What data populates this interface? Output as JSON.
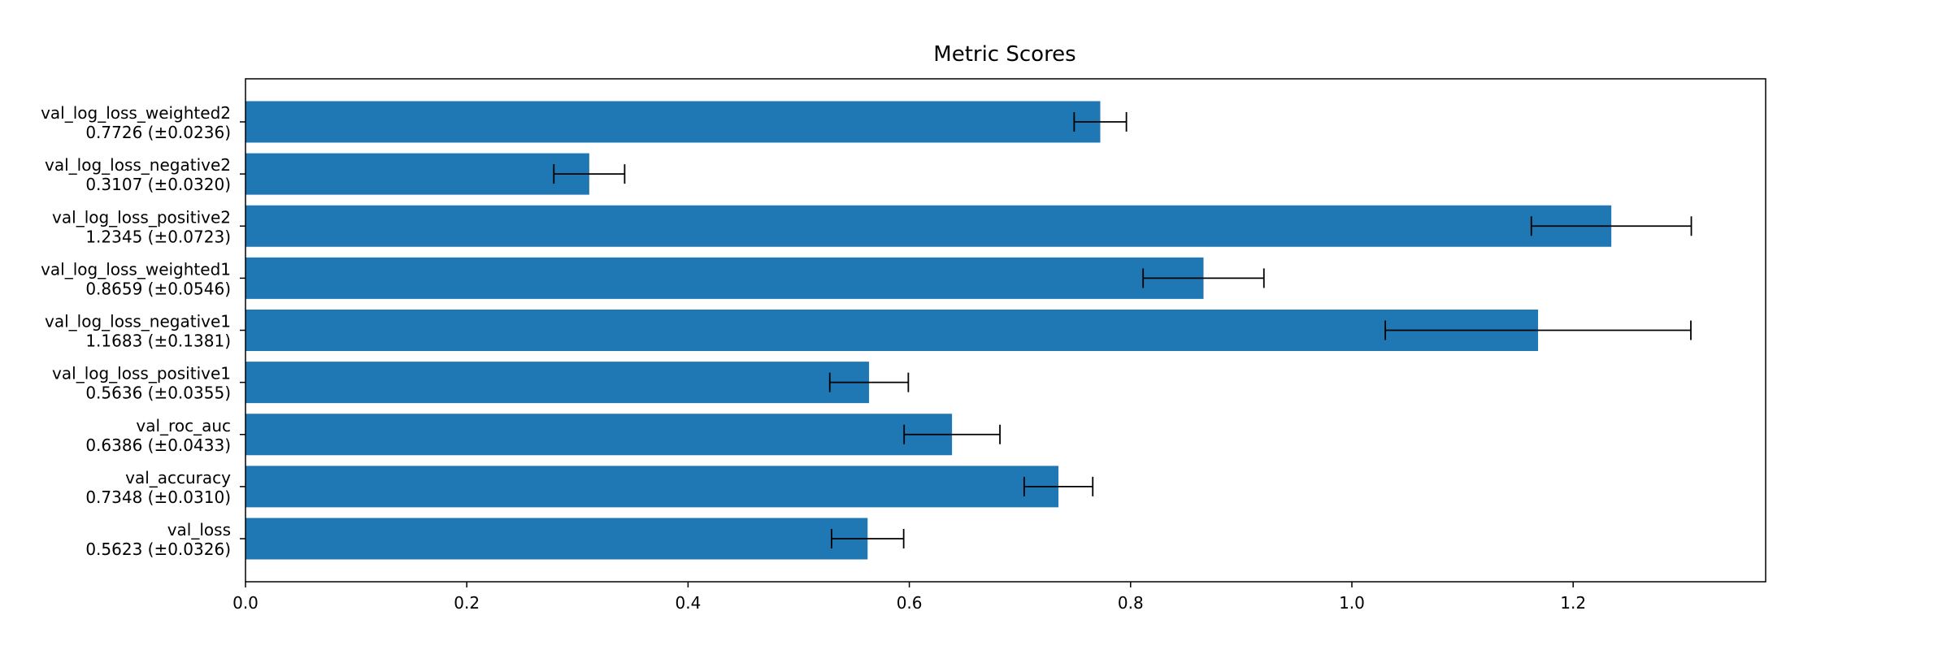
{
  "chart_data": {
    "type": "bar",
    "orientation": "horizontal",
    "title": "Metric Scores",
    "xlabel": "",
    "ylabel": "",
    "xlim": [
      0,
      1.374
    ],
    "xticks": [
      "0.0",
      "0.2",
      "0.4",
      "0.6",
      "0.8",
      "1.0",
      "1.2"
    ],
    "grid": false,
    "bar_color": "#1f77b4",
    "error_color": "#000000",
    "series": [
      {
        "categories": [
          "val_loss",
          "val_accuracy",
          "val_roc_auc",
          "val_log_loss_positive1",
          "val_log_loss_negative1",
          "val_log_loss_weighted1",
          "val_log_loss_positive2",
          "val_log_loss_negative2",
          "val_log_loss_weighted2"
        ],
        "values": [
          0.5623,
          0.7348,
          0.6386,
          0.5636,
          1.1683,
          0.8659,
          1.2345,
          0.3107,
          0.7726
        ],
        "errors": [
          0.0326,
          0.031,
          0.0433,
          0.0355,
          0.1381,
          0.0546,
          0.0723,
          0.032,
          0.0236
        ],
        "value_labels": [
          "0.5623 (±0.0326)",
          "0.7348 (±0.0310)",
          "0.6386 (±0.0433)",
          "0.5636 (±0.0355)",
          "1.1683 (±0.1381)",
          "0.8659 (±0.0546)",
          "1.2345 (±0.0723)",
          "0.3107 (±0.0320)",
          "0.7726 (±0.0236)"
        ]
      }
    ]
  }
}
